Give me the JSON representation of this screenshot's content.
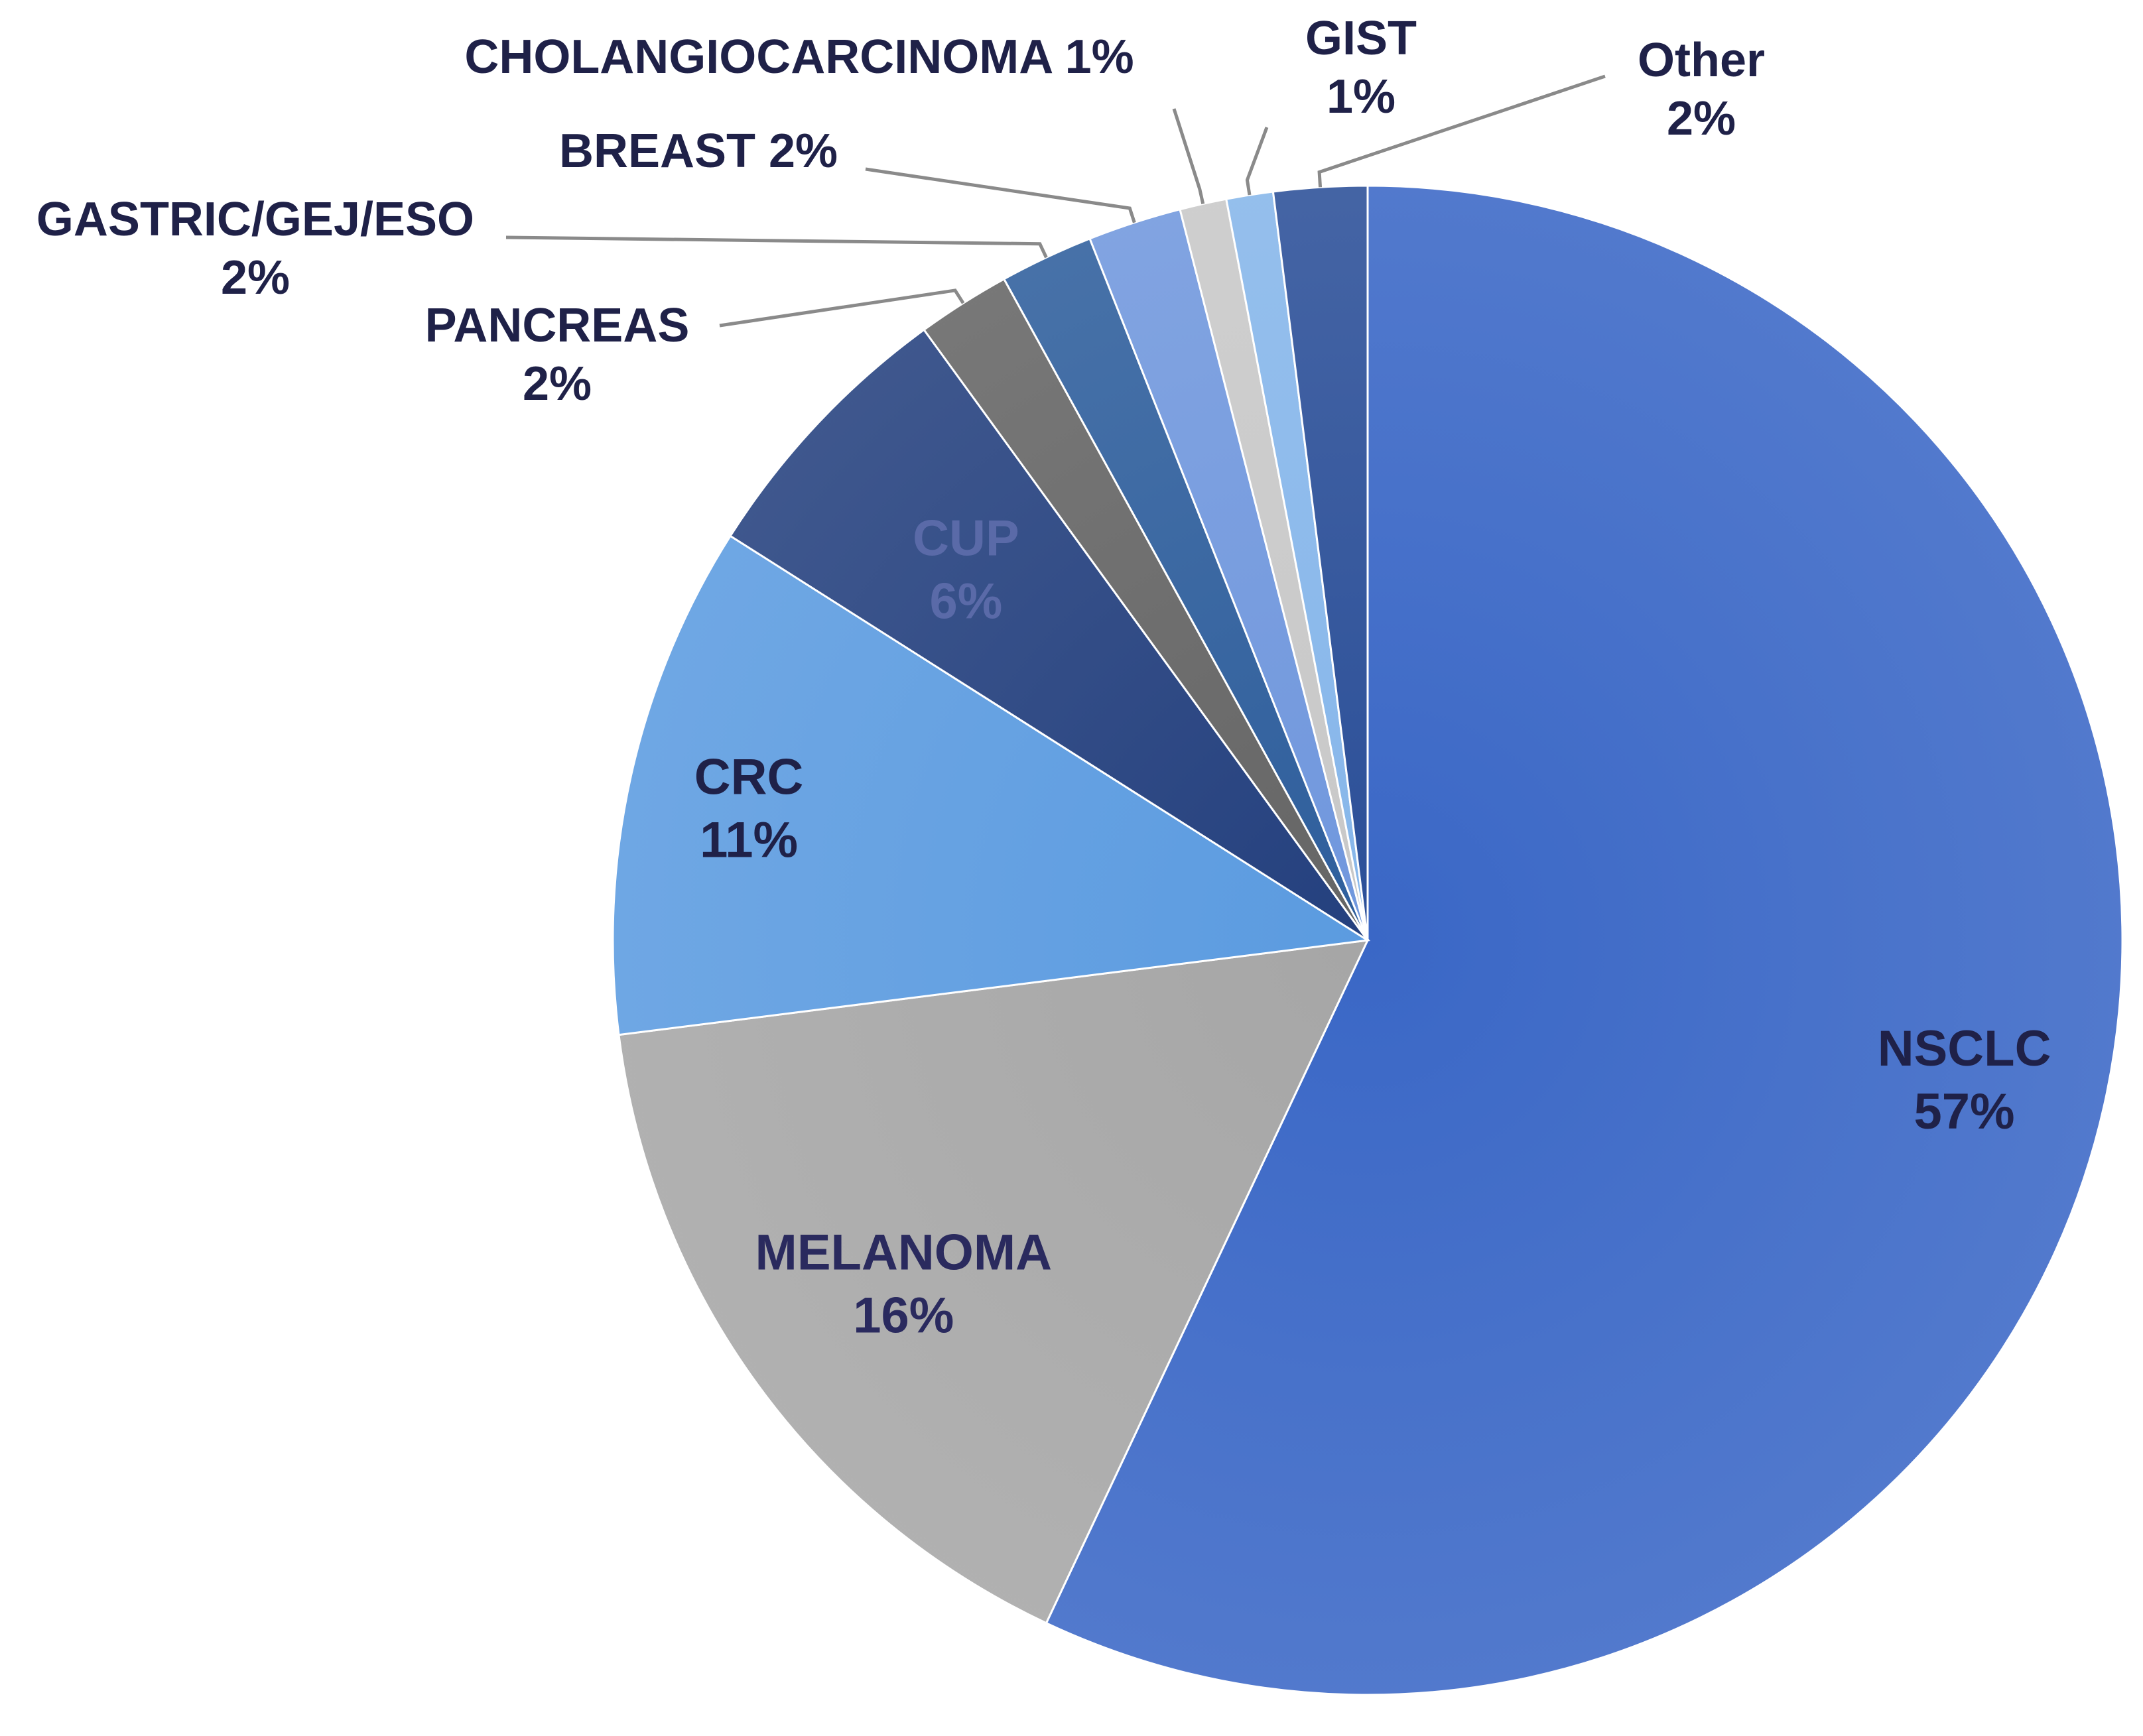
{
  "chart_data": {
    "type": "pie",
    "title": "",
    "slices": [
      {
        "label": "NSCLC",
        "pct_label": "57%",
        "value": 57,
        "color": "#3a67c6"
      },
      {
        "label": "MELANOMA",
        "pct_label": "16%",
        "value": 16,
        "color": "#a6a6a6"
      },
      {
        "label": "CRC",
        "pct_label": "11%",
        "value": 11,
        "color": "#5b9be0"
      },
      {
        "label": "CUP",
        "pct_label": "6%",
        "value": 6,
        "color": "#24407e"
      },
      {
        "label": "PANCREAS",
        "pct_label": "2%",
        "value": 2,
        "color": "#656565"
      },
      {
        "label": "GASTRIC/GEJ/ESO",
        "pct_label": "2%",
        "value": 2,
        "color": "#2e5e9c"
      },
      {
        "label": "BREAST",
        "pct_label": "2%",
        "value": 2,
        "color": "#7097dd"
      },
      {
        "label": "CHOLANGIOCARCINOMA",
        "pct_label": "1%",
        "value": 1,
        "color": "#c8c8c8"
      },
      {
        "label": "GIST",
        "pct_label": "1%",
        "value": 1,
        "color": "#86b6ea"
      },
      {
        "label": "Other",
        "pct_label": "2%",
        "value": 2,
        "color": "#2b4f98"
      }
    ]
  }
}
